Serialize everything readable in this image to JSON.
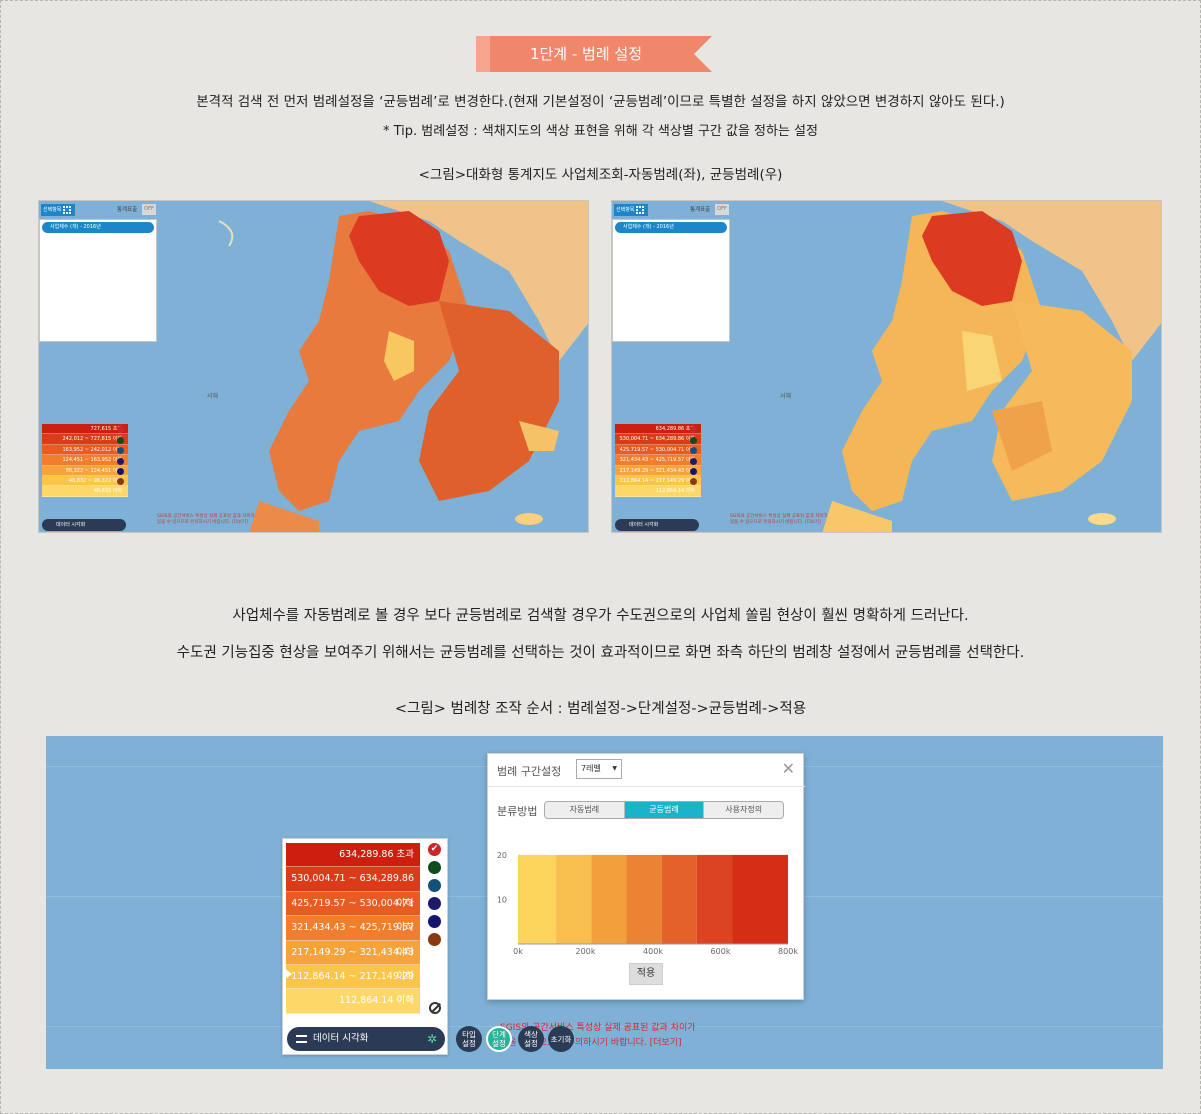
{
  "step": {
    "label": "1단계 - 범례 설정"
  },
  "intro": {
    "line1": "본격적 검색 전 먼저 범례설정을 ‘균등범례’로 변경한다.(현재 기본설정이 ‘균등범례’이므로 특별한 설정을 하지 않았으면 변경하지 않아도 된다.)",
    "line2": "* Tip. 범례설정 : 색채지도의 색상 표현을 위해 각 색상별 구간 값을 정하는 설정",
    "caption1": "<그림>대화형 통계지도 사업체조회-자동범례(좌), 균등범례(우)"
  },
  "body": {
    "line1": "사업체수를 자동범례로 볼 경우 보다 균등범례로 검색할 경우가 수도권으로의 사업체 쏠림 현상이 훨씬 명확하게 드러난다.",
    "line2": "수도권 기능집중 현상을 보여주기 위해서는 균등범례를 선택하는 것이 효과적이므로 화면 좌측 하단의 범례창 설정에서 균등범례를 선택한다.",
    "caption2": "<그림> 범례창 조작 순서 : 범례설정->단계설정->균등범례->적용"
  },
  "mini": {
    "select": "선택항목",
    "stats": "통계표출",
    "off": "OFF",
    "bar": "사업체수 (개) - 2016년",
    "sea": "서해",
    "viz": "데이터 시각화",
    "note1": "SGIS의 공간서비스 특성상 실제 공표된 값과 차이가",
    "note2": "있을 수 있으므로 유의하시기 바랍니다. [더보기]",
    "left_legend": [
      "727,615 초과",
      "242,012 ~ 727,615 이하",
      "163,952 ~ 242,012 이하",
      "124,451 ~ 163,952 이하",
      "98,322 ~ 124,451 이하",
      "48,832 ~ 98,322 이하",
      "48,832 이하"
    ],
    "right_legend": [
      "634,289.86 초과",
      "530,004.71 ~ 634,289.86 이하",
      "425,719.57 ~ 530,004.71 이하",
      "321,434.43 ~ 425,719.57 이하",
      "217,149.29 ~ 321,434.43 이하",
      "112,864.14 ~ 217,149.29 이하",
      "112,864.14 이하"
    ]
  },
  "legend": {
    "rows": [
      "634,289.86 초과",
      "530,004.71 ~ 634,289.86 이하",
      "425,719.57 ~ 530,004.71 이하",
      "321,434.43 ~ 425,719.57 이하",
      "217,149.29 ~ 321,434.43 이하",
      "112,864.14 ~ 217,149.29 이하",
      "112,864.14 이하"
    ],
    "colors": [
      "#cc1f10",
      "#dc3b1a",
      "#e85b22",
      "#f17e2d",
      "#f6a33a",
      "#fbc54a",
      "#fdd868"
    ],
    "dot_colors": [
      "#c9272b",
      "#0f4b1e",
      "#12517a",
      "#1d1a6b",
      "#17146e",
      "#8a3a12"
    ],
    "viz_label": "데이터 시각화"
  },
  "tools": [
    {
      "label": "타입\n설정",
      "color": "#2b3a55"
    },
    {
      "label": "단계\n설정",
      "color": "#2bb39a"
    },
    {
      "label": "색상\n설정",
      "color": "#2b3a55"
    },
    {
      "label": "초기화",
      "color": "#2b3a55"
    }
  ],
  "note": {
    "line1": "SGIS의 공간서비스 특성상 실제 공표된 값과 차이가",
    "line2": "있을 수 있으므로 유의하시기 바랍니다. [더보기]"
  },
  "dialog": {
    "title": "범례 구간설정",
    "level": "7레벨",
    "classify_label": "분류방법",
    "methods": [
      "자동범례",
      "균등범례",
      "사용자정의"
    ],
    "active_method": "균등범례",
    "apply": "적용"
  },
  "chart_data": {
    "type": "bar",
    "title": "",
    "xlabel": "",
    "ylabel": "",
    "x_ticks": [
      "0k",
      "200k",
      "400k",
      "600k",
      "800k"
    ],
    "y_ticks": [
      10,
      20
    ],
    "ylim": [
      0,
      22
    ],
    "xlim": [
      0,
      800000
    ],
    "bins": [
      {
        "from": 0,
        "to": 112864.14,
        "height": 20,
        "color": "#fdd55c"
      },
      {
        "from": 112864.14,
        "to": 217149.29,
        "height": 20,
        "color": "#f8bf4f"
      },
      {
        "from": 217149.29,
        "to": 321434.43,
        "height": 20,
        "color": "#f2a03c"
      },
      {
        "from": 321434.43,
        "to": 425719.57,
        "height": 20,
        "color": "#ec8332"
      },
      {
        "from": 425719.57,
        "to": 530004.71,
        "height": 20,
        "color": "#e5612a"
      },
      {
        "from": 530004.71,
        "to": 634289.86,
        "height": 20,
        "color": "#dc4322"
      },
      {
        "from": 634289.86,
        "to": 800000,
        "height": 20,
        "color": "#d42e14"
      }
    ]
  }
}
